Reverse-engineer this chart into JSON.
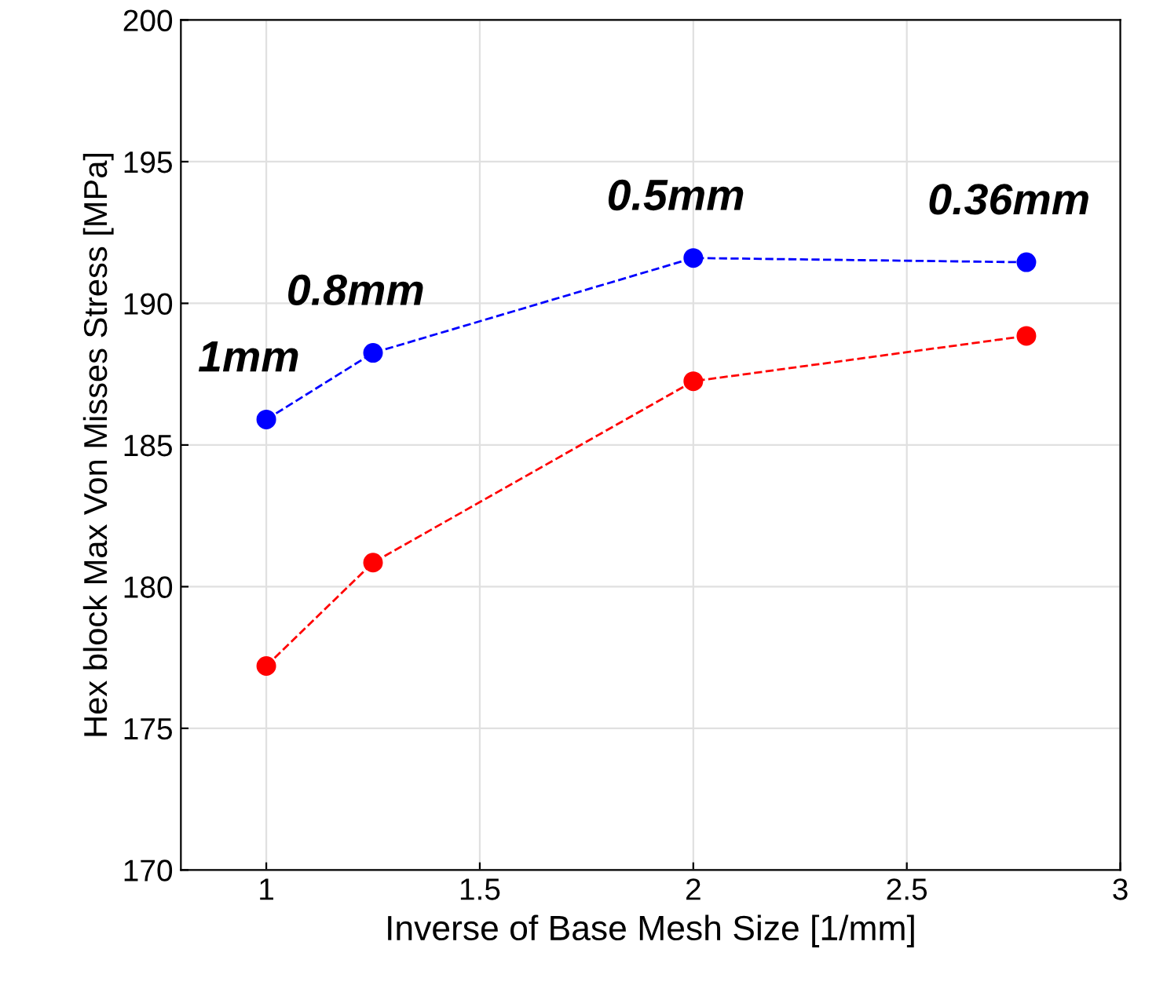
{
  "chart_data": {
    "type": "line",
    "xlabel": "Inverse of Base Mesh Size [1/mm]",
    "ylabel": "Hex block Max Von Misses Stress [MPa]",
    "x": [
      1,
      1.25,
      2,
      2.78
    ],
    "series": [
      {
        "color": "#ff0000",
        "values": [
          177.2,
          180.85,
          187.25,
          188.85
        ]
      },
      {
        "color": "#0000ff",
        "values": [
          185.9,
          188.25,
          191.6,
          191.45
        ]
      }
    ],
    "annotations": [
      {
        "text": "1mm",
        "x": 1,
        "y": 185.9
      },
      {
        "text": "0.8mm",
        "x": 1.25,
        "y": 188.25
      },
      {
        "text": "0.5mm",
        "x": 2,
        "y": 191.6
      },
      {
        "text": "0.36mm",
        "x": 2.78,
        "y": 191.45
      }
    ],
    "xlim": [
      0.8,
      3
    ],
    "xticks": [
      1,
      1.5,
      2,
      2.5,
      3
    ],
    "ylim": [
      170,
      200
    ],
    "yticks": [
      170,
      175,
      180,
      185,
      190,
      195,
      200
    ],
    "grid": true,
    "marker": "circle",
    "line_style": "dashed"
  }
}
